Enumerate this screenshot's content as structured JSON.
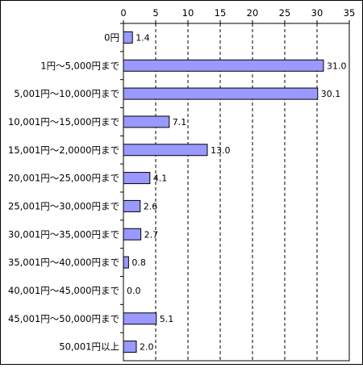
{
  "chart_data": {
    "type": "bar",
    "orientation": "horizontal",
    "categories": [
      "0円",
      "1円～5,000円まで",
      "5,001円～10,000円まで",
      "10,001円～15,000円まで",
      "15,001円～2,0000円まで",
      "20,001円～25,000円まで",
      "25,001円～30,000円まで",
      "30,001円～35,000円まで",
      "35,001円～40,000円まで",
      "40,001円～45,000円まで",
      "45,001円～50,000円まで",
      "50,001円以上"
    ],
    "values": [
      1.4,
      31.0,
      30.1,
      7.1,
      13.0,
      4.1,
      2.6,
      2.7,
      0.8,
      0.0,
      5.1,
      2.0
    ],
    "data_labels": [
      "1.4",
      "31.0",
      "30.1",
      "7.1",
      "13.0",
      "4.1",
      "2.6",
      "2.7",
      "0.8",
      "0.0",
      "5.1",
      "2.0"
    ],
    "xlim": [
      0,
      35
    ],
    "x_ticks": [
      0,
      5,
      10,
      15,
      20,
      25,
      30,
      35
    ],
    "x_axis_position": "top",
    "gridlines": "vertical dashed",
    "legend": "none",
    "bar_color": "#9999ff",
    "bar_edge_color": "#000000"
  }
}
